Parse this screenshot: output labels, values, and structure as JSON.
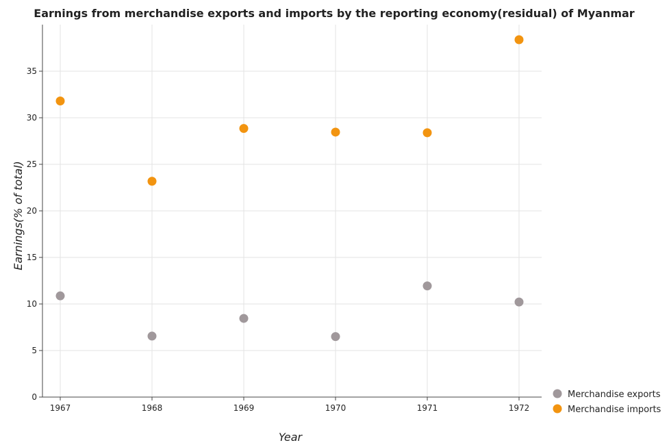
{
  "chart_data": {
    "type": "scatter",
    "title": "Earnings from merchandise exports and imports by the reporting economy(residual) of Myanmar",
    "xlabel": "Year",
    "ylabel": "Earnings(% of total)",
    "categories": [
      "1967",
      "1968",
      "1969",
      "1970",
      "1971",
      "1972"
    ],
    "ylim": [
      0,
      40
    ],
    "yticks": [
      0,
      5,
      10,
      15,
      20,
      25,
      30,
      35
    ],
    "grid": true,
    "legend_position": "bottom-right",
    "series": [
      {
        "name": "Merchandise exports",
        "color": "#a0989b",
        "values": [
          10.87,
          6.55,
          8.45,
          6.5,
          11.94,
          10.21
        ]
      },
      {
        "name": "Merchandise imports",
        "color": "#f29410",
        "values": [
          31.8,
          23.18,
          28.85,
          28.46,
          28.39,
          38.38
        ]
      }
    ]
  }
}
